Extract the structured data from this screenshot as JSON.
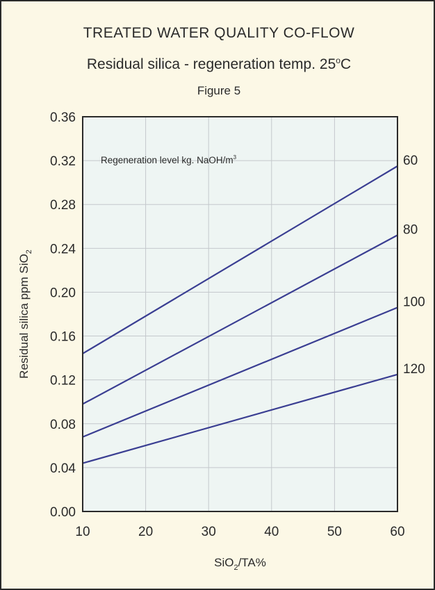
{
  "chart_data": {
    "type": "line",
    "title": "TREATED WATER QUALITY CO-FLOW",
    "subtitle_text": "Residual silica - regeneration temp. 25",
    "subtitle_degree": "o",
    "subtitle_unit": "C",
    "figure_label": "Figure 5",
    "ylabel_main": "Residual silica ppm SiO",
    "ylabel_sub": "2",
    "xlabel_pre": "SiO",
    "xlabel_sub": "2",
    "xlabel_post": "/TA%",
    "annotation_main": "Regeneration level kg. NaOH/m",
    "annotation_sup": "3",
    "xlim": [
      10,
      60
    ],
    "ylim": [
      0.0,
      0.36
    ],
    "x_ticks": [
      "10",
      "20",
      "30",
      "40",
      "50",
      "60"
    ],
    "y_ticks": [
      "0.00",
      "0.04",
      "0.08",
      "0.12",
      "0.16",
      "0.20",
      "0.24",
      "0.28",
      "0.32",
      "0.36"
    ],
    "x_tick_values": [
      10,
      20,
      30,
      40,
      50,
      60
    ],
    "y_tick_values": [
      0.0,
      0.04,
      0.08,
      0.12,
      0.16,
      0.2,
      0.24,
      0.28,
      0.32,
      0.36
    ],
    "grid": true,
    "series": [
      {
        "name": "60",
        "x": [
          10,
          60
        ],
        "y": [
          0.144,
          0.315
        ]
      },
      {
        "name": "80",
        "x": [
          10,
          60
        ],
        "y": [
          0.098,
          0.252
        ]
      },
      {
        "name": "100",
        "x": [
          10,
          60
        ],
        "y": [
          0.068,
          0.186
        ]
      },
      {
        "name": "120",
        "x": [
          10,
          60
        ],
        "y": [
          0.044,
          0.125
        ]
      }
    ],
    "colors": {
      "line": "#3a3e92",
      "plot_bg": "#eef5f3",
      "page_bg": "#fcf8e6",
      "grid": "#c4c8cc",
      "axis": "#2a2a2a"
    }
  }
}
